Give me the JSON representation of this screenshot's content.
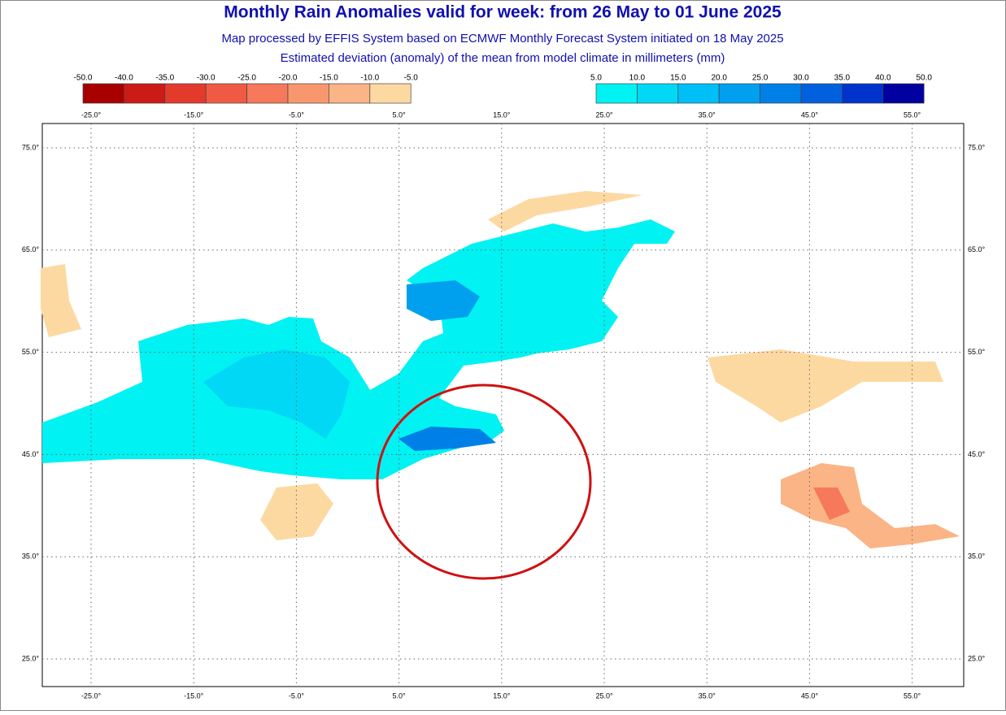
{
  "header": {
    "title": "Monthly Rain Anomalies valid for week: from 26 May to 01 June 2025",
    "subtitle_1": "Map processed by EFFIS System based on ECMWF Monthly Forecast System initiated on 18 May 2025",
    "subtitle_2": "Estimated deviation (anomaly) of the mean from model climate in millimeters (mm)"
  },
  "legend_negative": {
    "labels": [
      "-50.0",
      "-40.0",
      "-35.0",
      "-30.0",
      "-25.0",
      "-20.0",
      "-15.0",
      "-10.0",
      "-5.0"
    ],
    "colors": [
      "#a80000",
      "#cc1a16",
      "#e43a2c",
      "#f05a44",
      "#f5795a",
      "#f8976e",
      "#fbb485",
      "#fdd9a2"
    ]
  },
  "legend_positive": {
    "labels": [
      "5.0",
      "10.0",
      "15.0",
      "20.0",
      "25.0",
      "30.0",
      "35.0",
      "40.0",
      "50.0"
    ],
    "colors": [
      "#00f2f2",
      "#00d8f6",
      "#00bef6",
      "#00a0ee",
      "#0080e6",
      "#0060de",
      "#0032cc",
      "#0000a0"
    ]
  },
  "map": {
    "longitudes": [
      "-25.0°",
      "-15.0°",
      "-5.0°",
      "5.0°",
      "15.0°",
      "25.0°",
      "35.0°",
      "45.0°",
      "55.0°"
    ],
    "latitudes": [
      "75.0°",
      "65.0°",
      "55.0°",
      "45.0°",
      "35.0°",
      "25.0°"
    ]
  }
}
